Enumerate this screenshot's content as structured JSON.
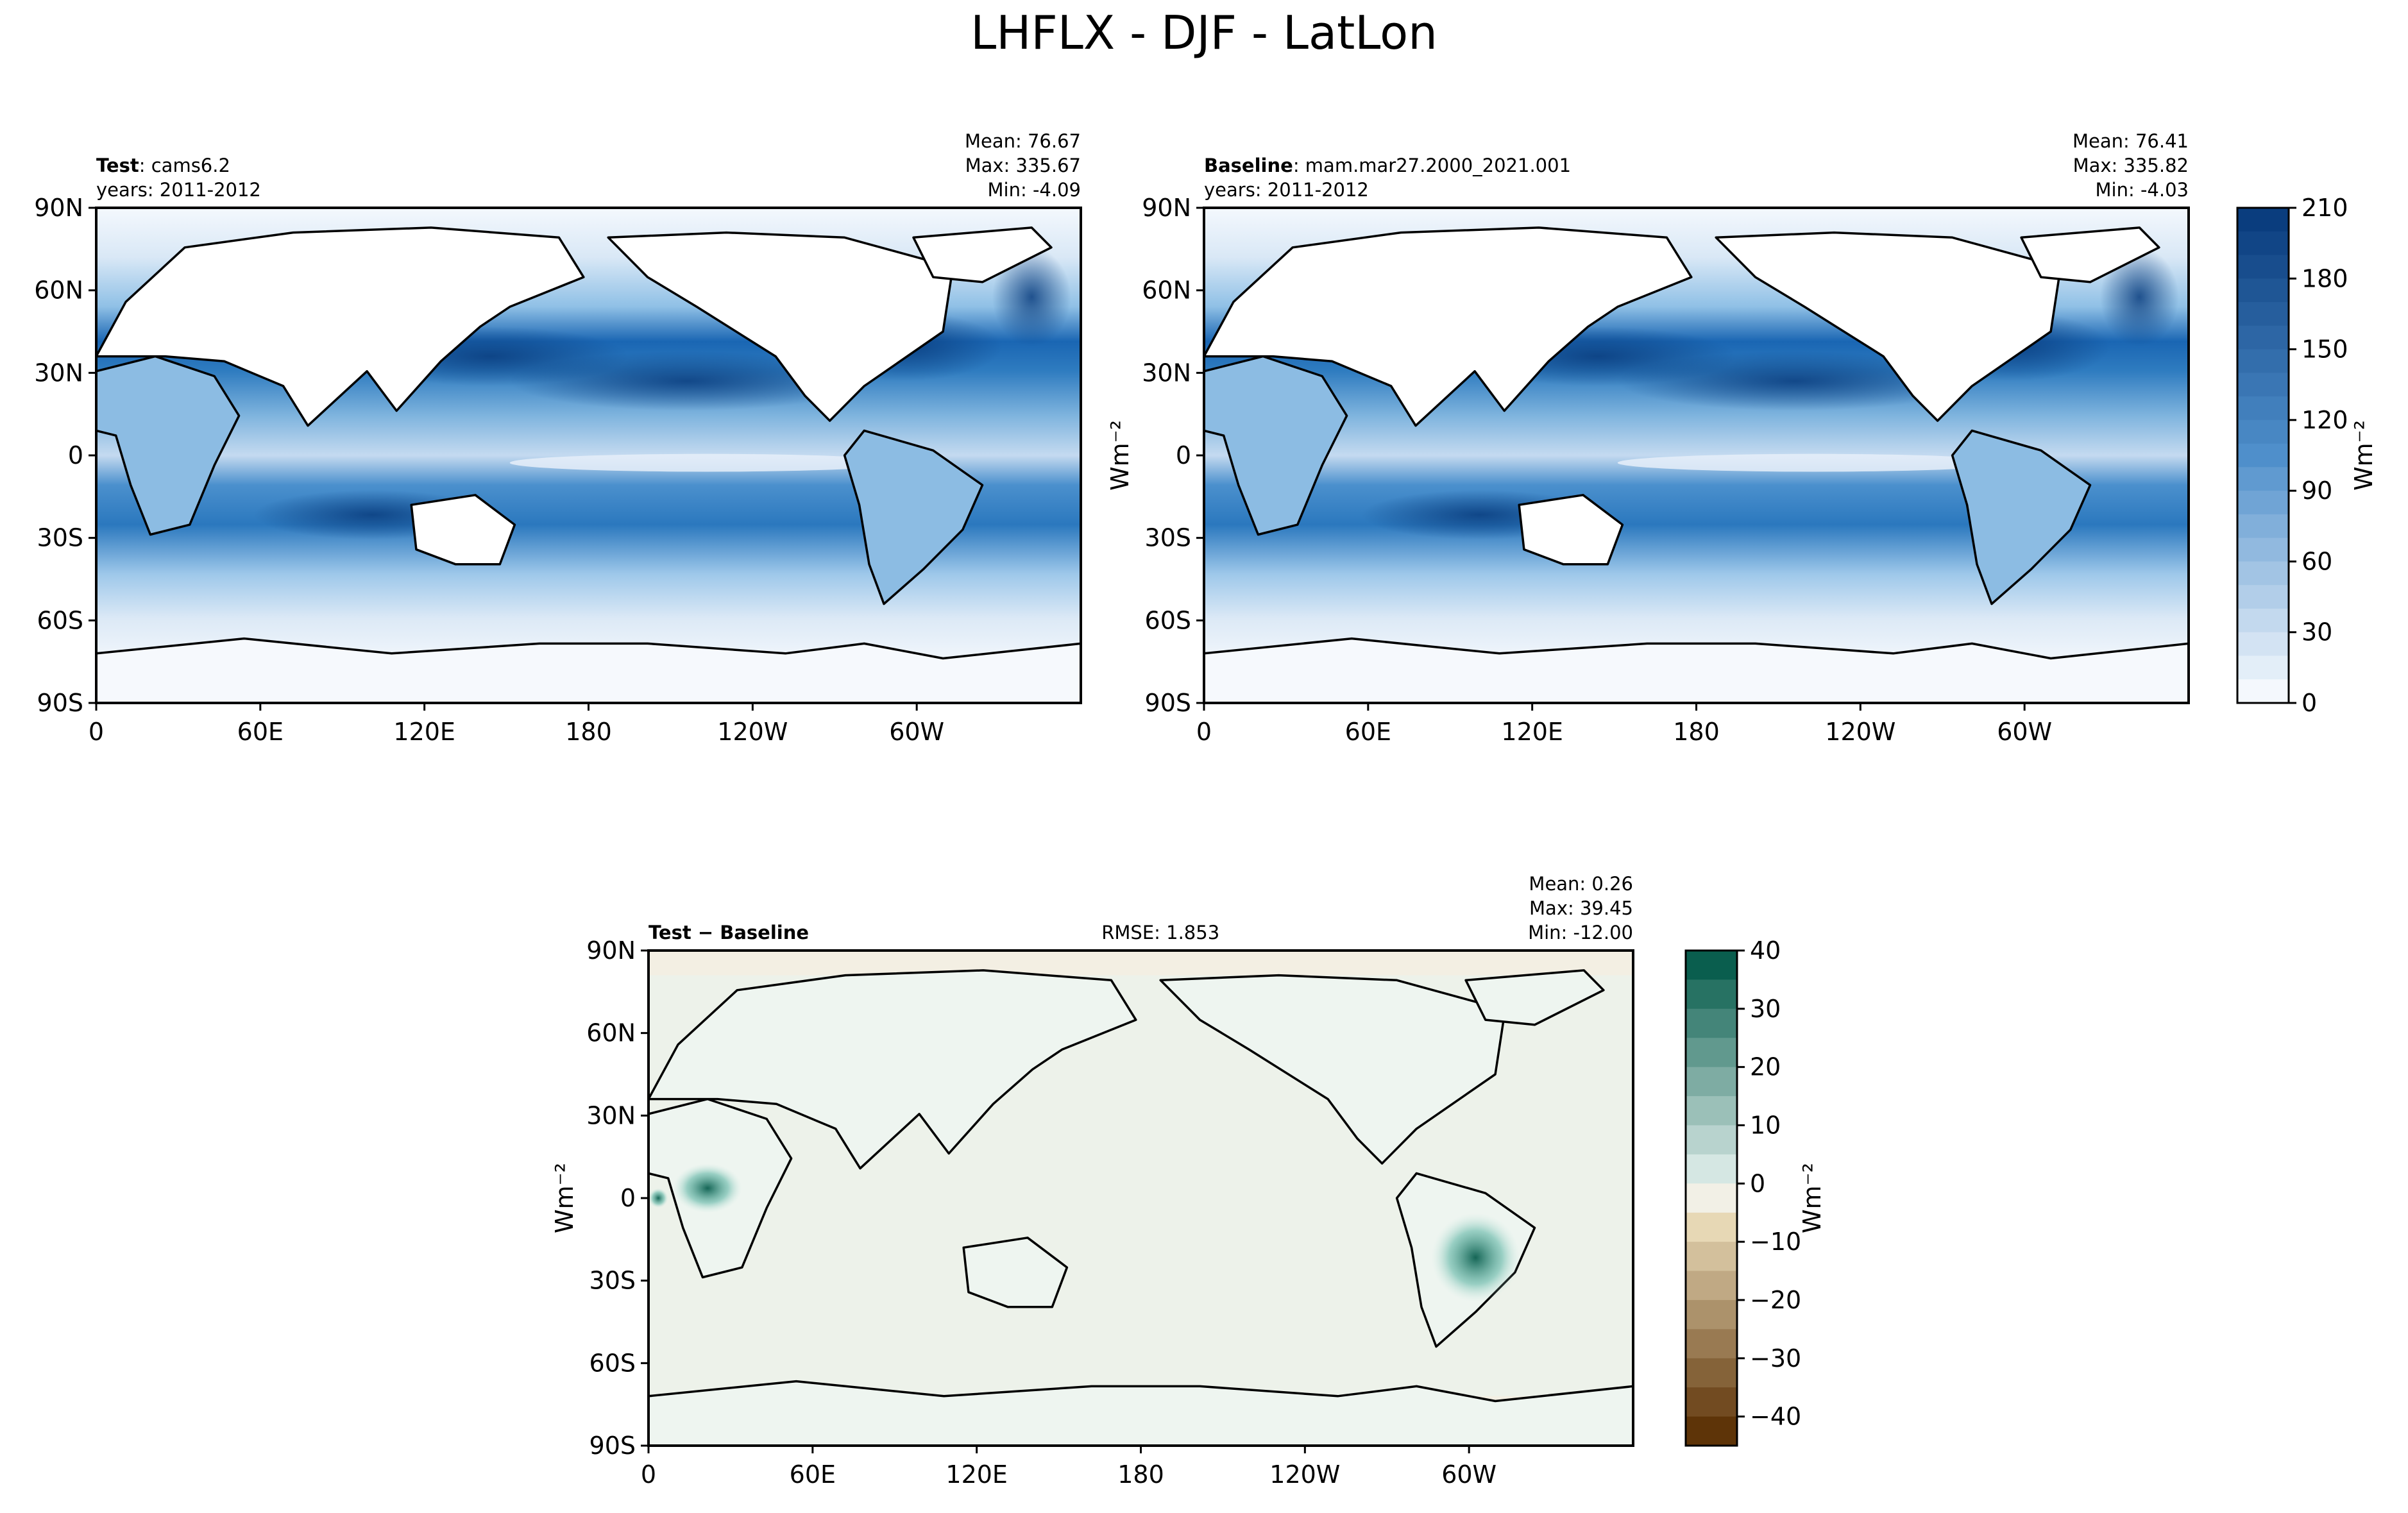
{
  "figure_title": "LHFLX - DJF - LatLon",
  "panels": [
    {
      "label_bold": "Test",
      "label_rest": ": cams6.2",
      "years": "years: 2011-2012",
      "stats": [
        "Mean: 76.67",
        "Max: 335.67",
        "Min: -4.09"
      ],
      "rmse": ""
    },
    {
      "label_bold": "Baseline",
      "label_rest": ": mam.mar27.2000_2021.001",
      "years": "years: 2011-2012",
      "stats": [
        "Mean: 76.41",
        "Max: 335.82",
        "Min: -4.03"
      ],
      "rmse": ""
    },
    {
      "label_bold": "Test − Baseline",
      "label_rest": "",
      "years": "",
      "stats": [
        "Mean:  0.26",
        "Max: 39.45",
        "Min: -12.00"
      ],
      "rmse": "RMSE: 1.853"
    }
  ],
  "colors": {
    "field_low": "#f4f8fd",
    "field_high": "#0a3d7e",
    "diff_bg": "#f3efe3",
    "diff_pos": "#0a5e4e",
    "diff_neg": "#5e3408",
    "coast": "#000000"
  },
  "chart_data": [
    {
      "type": "heatmap",
      "title": "Test: cams6.2",
      "xlabel": "",
      "ylabel": "",
      "x_ticks": [
        "0",
        "60E",
        "120E",
        "180",
        "120W",
        "60W"
      ],
      "y_ticks": [
        "90N",
        "60N",
        "30N",
        "0",
        "30S",
        "60S",
        "90S"
      ],
      "colorbar": "shared with Baseline panel",
      "stats": {
        "mean": 76.67,
        "max": 335.67,
        "min": -4.09
      }
    },
    {
      "type": "heatmap",
      "title": "Baseline: mam.mar27.2000_2021.001",
      "xlabel": "",
      "ylabel": "Wm⁻²",
      "x_ticks": [
        "0",
        "60E",
        "120E",
        "180",
        "120W",
        "60W"
      ],
      "y_ticks": [
        "90N",
        "60N",
        "30N",
        "0",
        "30S",
        "60S",
        "90S"
      ],
      "colorbar": {
        "label": "Wm⁻²",
        "range": [
          0,
          210
        ],
        "ticks": [
          "0",
          "30",
          "60",
          "90",
          "120",
          "150",
          "180",
          "210"
        ],
        "levels": 21
      },
      "stats": {
        "mean": 76.41,
        "max": 335.82,
        "min": -4.03
      }
    },
    {
      "type": "heatmap",
      "title": "Test − Baseline",
      "xlabel": "",
      "ylabel": "Wm⁻²",
      "x_ticks": [
        "0",
        "60E",
        "120E",
        "180",
        "120W",
        "60W"
      ],
      "y_ticks": [
        "90N",
        "60N",
        "30N",
        "0",
        "30S",
        "60S",
        "90S"
      ],
      "colorbar": {
        "label": "Wm⁻²",
        "range": [
          -45,
          40
        ],
        "ticks": [
          "40",
          "30",
          "20",
          "10",
          "0",
          "−10",
          "−20",
          "−30",
          "−40"
        ],
        "levels": 17
      },
      "rmse": 1.853,
      "stats": {
        "mean": 0.26,
        "max": 39.45,
        "min": -12.0
      }
    }
  ]
}
